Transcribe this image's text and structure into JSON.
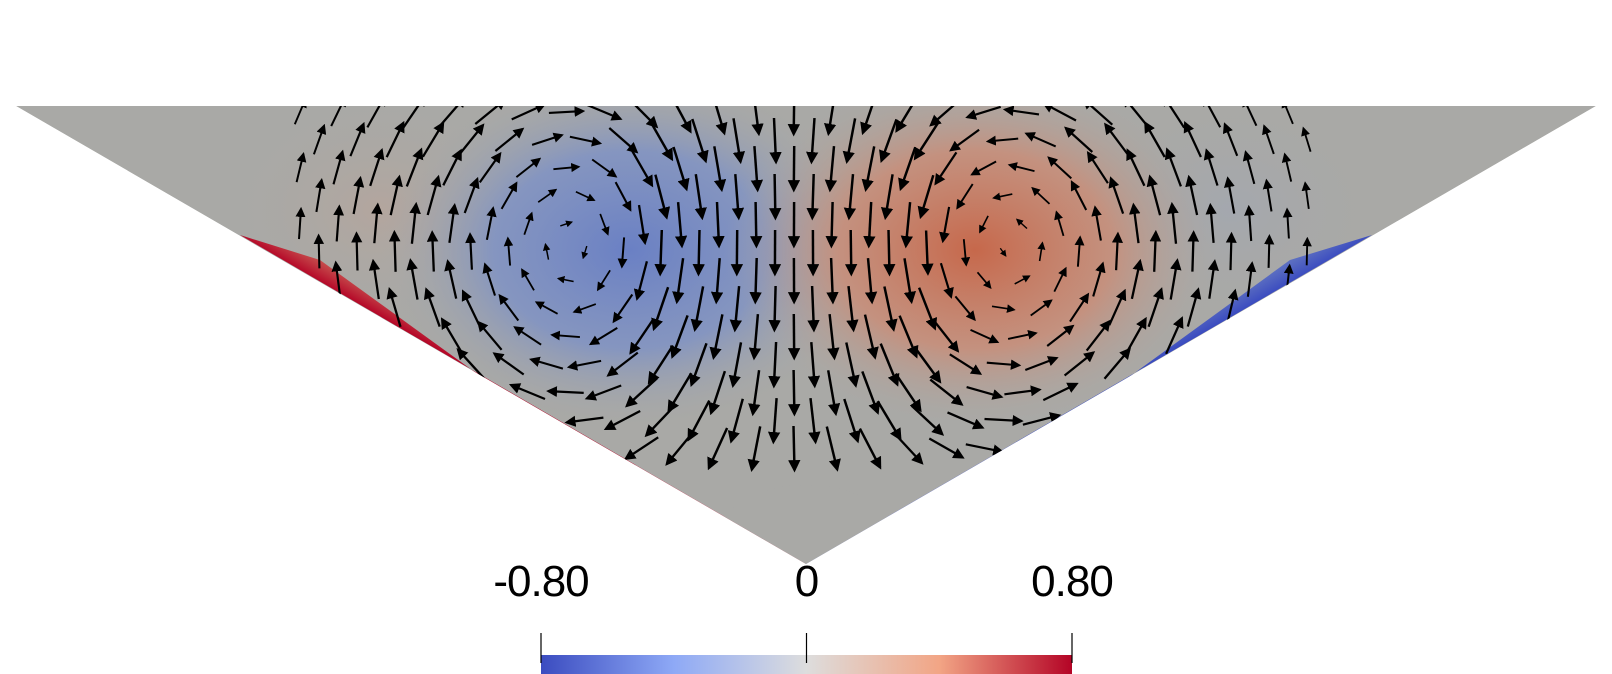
{
  "colorbar": {
    "ticks": [
      {
        "value": -0.8,
        "label": "-0.80"
      },
      {
        "value": 0,
        "label": "0"
      },
      {
        "value": 0.8,
        "label": "0.80"
      }
    ],
    "range": [
      -0.8,
      0.8
    ],
    "colormap": "cool-to-warm",
    "colors": {
      "low": "#3b4cc0",
      "mid": "#dddddd",
      "high": "#b40426"
    }
  },
  "field": {
    "description_colors": {
      "background": "#ffffff",
      "neutral_surface": "#a9a9a6",
      "arrow": "#000000"
    }
  }
}
